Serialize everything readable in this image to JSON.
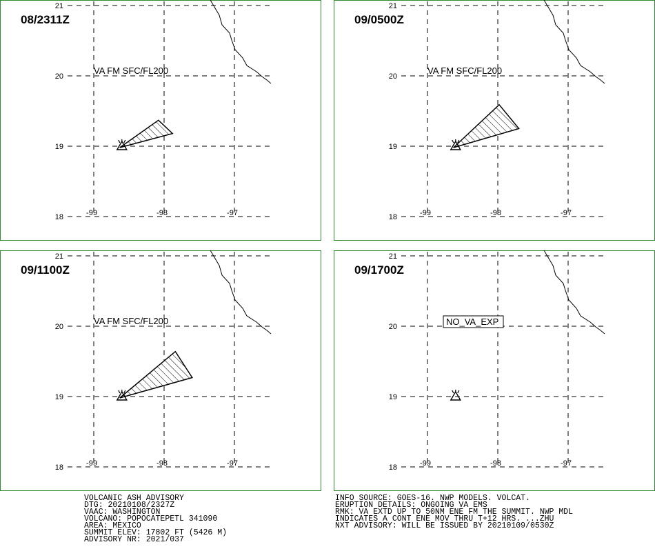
{
  "colors": {
    "frame": "#2f8a2f",
    "ink": "#000000",
    "background": "#ffffff"
  },
  "axes": {
    "lat_ticks": [
      "21",
      "20",
      "19",
      "18"
    ],
    "lon_ticks": [
      "-99",
      "-98",
      "-97"
    ],
    "lat_values": [
      21,
      20,
      19,
      18
    ],
    "lon_values": [
      -99,
      -98,
      -97
    ]
  },
  "volcano": {
    "lat": 19.0,
    "lon": -98.6,
    "icon": "volcano-triangle-icon"
  },
  "panels": [
    {
      "time": "08/2311Z",
      "label": "VA FM SFC/FL200",
      "boxed": false,
      "plume": [
        [
          -98.63,
          18.98
        ],
        [
          -98.08,
          19.37
        ],
        [
          -97.88,
          19.18
        ]
      ]
    },
    {
      "time": "09/0500Z",
      "label": "VA FM SFC/FL200",
      "boxed": false,
      "plume": [
        [
          -98.63,
          18.98
        ],
        [
          -97.98,
          19.59
        ],
        [
          -97.7,
          19.25
        ]
      ]
    },
    {
      "time": "09/1100Z",
      "label": "VA FM SFC/FL200",
      "boxed": false,
      "plume": [
        [
          -98.63,
          18.98
        ],
        [
          -97.84,
          19.64
        ],
        [
          -97.6,
          19.27
        ]
      ]
    },
    {
      "time": "09/1700Z",
      "label": "NO_VA_EXP",
      "boxed": true,
      "plume": []
    }
  ],
  "advisory_left": [
    "VOLCANIC ASH ADVISORY",
    "DTG: 20210108/2327Z",
    "VAAC: WASHINGTON",
    "VOLCANO: POPOCATEPETL 341090",
    "AREA: MEXICO",
    "SUMMIT ELEV: 17802 FT (5426 M)",
    "ADVISORY NR: 2021/037"
  ],
  "advisory_right": [
    "INFO SOURCE: GOES-16. NWP MODELS. VOLCAT.",
    "ERUPTION DETAILS: ONGOING VA EMS",
    "RMK: VA EXTD UP TO 50NM ENE FM THE SUMMIT. NWP MDL",
    "INDICATES A CONT ENE MOV THRU T+12 HRS. ...ZHU",
    "NXT ADVISORY: WILL BE ISSUED BY 20210109/0530Z"
  ]
}
